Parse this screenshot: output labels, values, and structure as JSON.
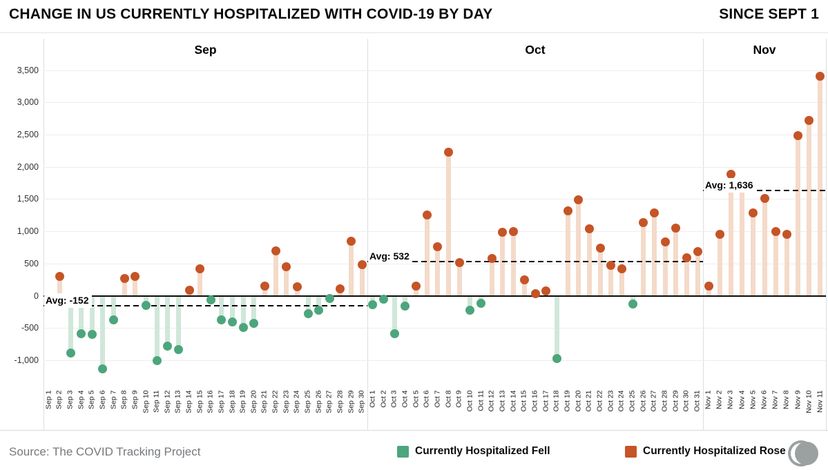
{
  "header": {
    "title": "CHANGE IN US CURRENTLY HOSPITALIZED WITH COVID-19 BY DAY",
    "subtitle": "SINCE SEPT 1"
  },
  "chart_data": {
    "type": "bar",
    "variant": "lollipop",
    "title": "CHANGE IN US CURRENTLY HOSPITALIZED WITH COVID-19 BY DAY",
    "subtitle": "SINCE SEPT 1",
    "ylim": [
      -1430,
      3990
    ],
    "grid": "horizontal",
    "legend_position": "bottom",
    "y_ticks": [
      {
        "label": "3,500",
        "value": 3500
      },
      {
        "label": "3,000",
        "value": 3000
      },
      {
        "label": "2,500",
        "value": 2500
      },
      {
        "label": "2,000",
        "value": 2000
      },
      {
        "label": "1,500",
        "value": 1500
      },
      {
        "label": "1,000",
        "value": 1000
      },
      {
        "label": "500",
        "value": 500
      },
      {
        "label": "0",
        "value": 0
      },
      {
        "label": "-500",
        "value": -500
      },
      {
        "label": "-1,000",
        "value": -1000
      }
    ],
    "panels": [
      {
        "month": "Sep",
        "avg_value": -152,
        "avg_label": "Avg: -152",
        "categories": [
          "Sep 1",
          "Sep 2",
          "Sep 3",
          "Sep 4",
          "Sep 5",
          "Sep 6",
          "Sep 7",
          "Sep 8",
          "Sep 9",
          "Sep 10",
          "Sep 11",
          "Sep 12",
          "Sep 13",
          "Sep 14",
          "Sep 15",
          "Sep 16",
          "Sep 17",
          "Sep 18",
          "Sep 19",
          "Sep 20",
          "Sep 21",
          "Sep 22",
          "Sep 23",
          "Sep 24",
          "Sep 25",
          "Sep 26",
          "Sep 27",
          "Sep 28",
          "Sep 29",
          "Sep 30"
        ],
        "values": [
          -60,
          300,
          -890,
          -590,
          -600,
          -1140,
          -370,
          270,
          300,
          -150,
          -1010,
          -780,
          -840,
          90,
          420,
          -60,
          -380,
          -410,
          -490,
          -430,
          150,
          700,
          450,
          140,
          -280,
          -230,
          -40,
          110,
          850,
          480
        ]
      },
      {
        "month": "Oct",
        "avg_value": 532,
        "avg_label": "Avg: 532",
        "categories": [
          "Oct 1",
          "Oct 2",
          "Oct 3",
          "Oct 4",
          "Oct 5",
          "Oct 6",
          "Oct 7",
          "Oct 8",
          "Oct 9",
          "Oct 10",
          "Oct 11",
          "Oct 12",
          "Oct 13",
          "Oct 14",
          "Oct 15",
          "Oct 16",
          "Oct 17",
          "Oct 18",
          "Oct 19",
          "Oct 20",
          "Oct 21",
          "Oct 22",
          "Oct 23",
          "Oct 24",
          "Oct 25",
          "Oct 26",
          "Oct 27",
          "Oct 28",
          "Oct 29",
          "Oct 30",
          "Oct 31"
        ],
        "values": [
          -140,
          -50,
          -590,
          -160,
          150,
          1250,
          760,
          2230,
          510,
          -220,
          -120,
          580,
          990,
          1000,
          250,
          30,
          70,
          -970,
          1320,
          1490,
          1040,
          740,
          470,
          420,
          -130,
          1140,
          1290,
          830,
          1050,
          590,
          690
        ]
      },
      {
        "month": "Nov",
        "avg_value": 1636,
        "avg_label": "Avg: 1,636",
        "categories": [
          "Nov 1",
          "Nov 2",
          "Nov 3",
          "Nov 4",
          "Nov 5",
          "Nov 6",
          "Nov 7",
          "Nov 8",
          "Nov 9",
          "Nov 10",
          "Nov 11"
        ],
        "values": [
          150,
          950,
          1880,
          1690,
          1280,
          1510,
          1000,
          950,
          2480,
          2720,
          3400
        ]
      }
    ],
    "colors": {
      "fell_dot": "#4ca57c",
      "fell_stem": "#d0e7da",
      "rose_dot": "#c55426",
      "rose_stem": "#f4dac9",
      "gridline": "#ededed",
      "zero_line": "#0a0a0a",
      "avg_line": "#000000"
    },
    "legend": [
      {
        "key": "fell",
        "label": "Currently Hospitalized Fell",
        "color": "#4ca57c"
      },
      {
        "key": "rose",
        "label": "Currently Hospitalized Rose",
        "color": "#c55426"
      }
    ]
  },
  "footer": {
    "source": "Source: The COVID Tracking Project"
  }
}
